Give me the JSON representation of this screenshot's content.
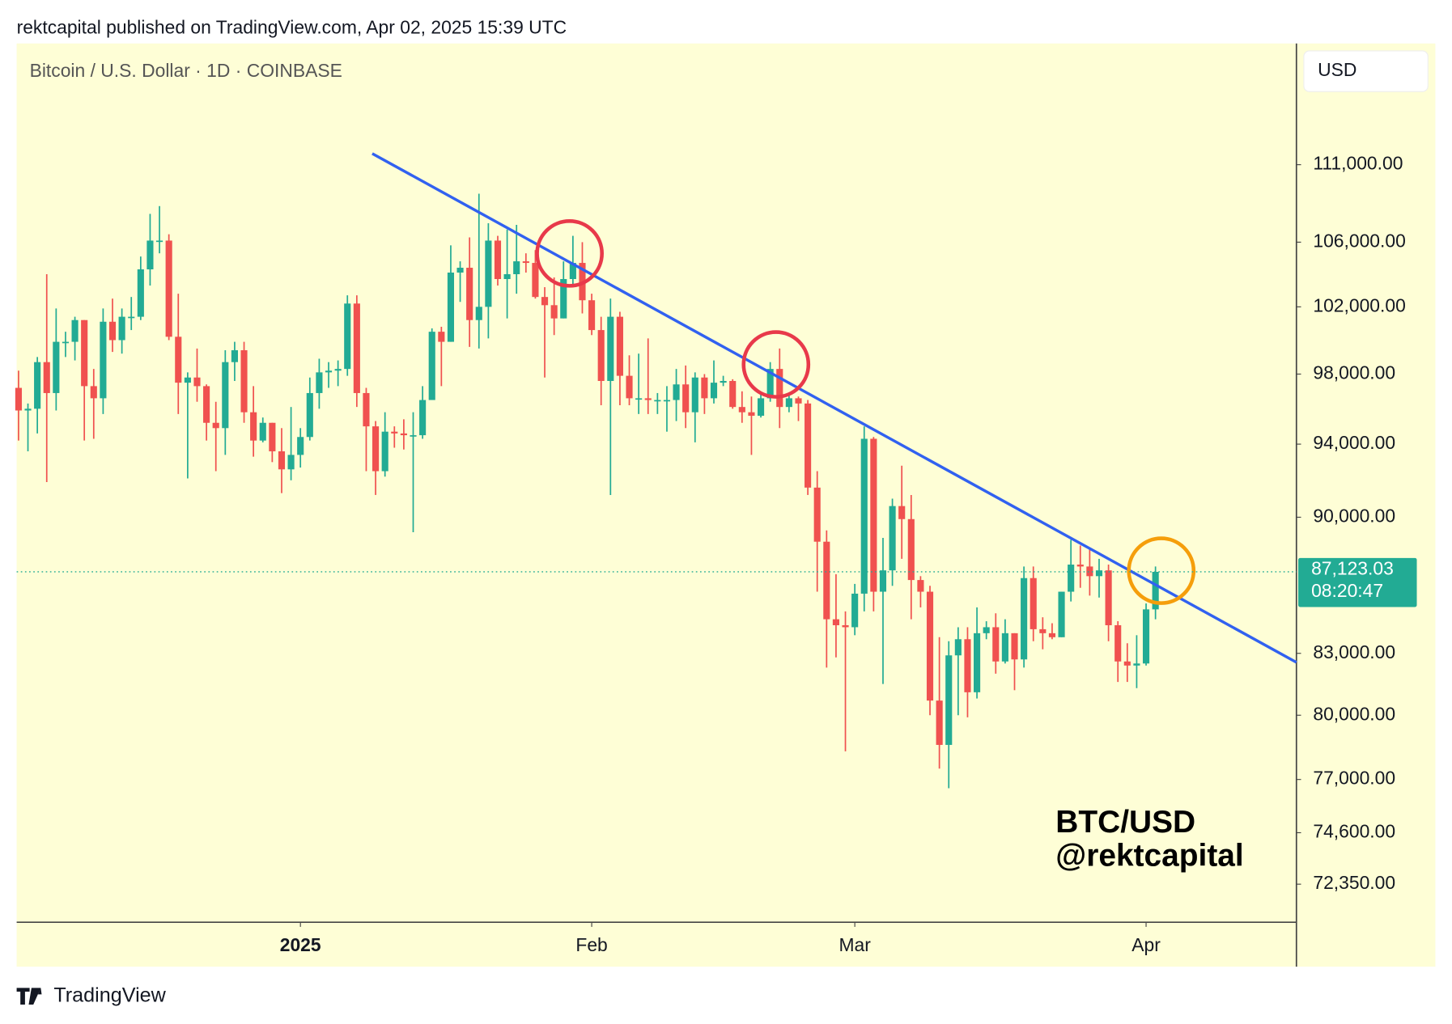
{
  "header": "rektcapital published on TradingView.com, Apr 02, 2025 15:39 UTC",
  "currency": "USD",
  "countdown": "08:20:47",
  "watermark": [
    "BTC/USD",
    "@rektcapital"
  ],
  "footer_brand": "TradingView",
  "chart_data": {
    "type": "candlestick",
    "title": "Bitcoin / U.S. Dollar · 1D · COINBASE",
    "log_scale": true,
    "grid": false,
    "up_color": "#22ab94",
    "down_color": "#f0514f",
    "open": [
      97200,
      95900,
      96000,
      98700,
      96900,
      99900,
      99900,
      101200,
      97300,
      96600,
      101100,
      100000,
      101400,
      101400,
      104300,
      106100,
      106100,
      100200,
      97500,
      97800,
      97300,
      95200,
      94900,
      98700,
      99400,
      95800,
      94200,
      95200,
      93600,
      92600,
      93400,
      94400,
      96900,
      98100,
      98200,
      98300,
      102200,
      96900,
      95000,
      92500,
      94700,
      94600,
      94500,
      94500,
      96500,
      100500,
      99900,
      104100,
      104400,
      101200,
      102000,
      106100,
      103700,
      104000,
      104800,
      104700,
      102600,
      102100,
      101300,
      103700,
      104700,
      102400,
      100600,
      97600,
      101400,
      97900,
      96600,
      96600,
      96500,
      96500,
      96500,
      97400,
      95800,
      97800,
      96600,
      97500,
      97600,
      96100,
      95800,
      95600,
      96600,
      98300,
      96100,
      96600,
      96300,
      91600,
      88700,
      84700,
      84400,
      84300,
      86000,
      94300,
      86100,
      87200,
      90600,
      89900,
      86700,
      86100,
      80700,
      78600,
      82900,
      83700,
      81100,
      84000,
      84300,
      82600,
      84000,
      82700,
      86800,
      84200,
      84000,
      83800,
      86100,
      87500,
      87400,
      86900,
      87200,
      84400,
      82600,
      82400,
      82500,
      85200
    ],
    "high": [
      98200,
      96300,
      99000,
      104000,
      101900,
      100500,
      101400,
      101200,
      98300,
      101900,
      102500,
      101900,
      102600,
      105100,
      107800,
      108300,
      106500,
      102800,
      98100,
      99500,
      97400,
      96400,
      99400,
      99900,
      99900,
      97300,
      95500,
      95200,
      94900,
      96100,
      94900,
      97800,
      98900,
      98700,
      98800,
      102700,
      102700,
      97200,
      95300,
      95800,
      95000,
      95400,
      95800,
      97300,
      100700,
      100800,
      105800,
      104800,
      106300,
      109100,
      107200,
      106400,
      106800,
      107100,
      105300,
      105500,
      103200,
      103800,
      104800,
      106400,
      106000,
      102800,
      101400,
      102500,
      101700,
      99100,
      99200,
      100100,
      96900,
      97300,
      98300,
      98500,
      98100,
      98000,
      98800,
      97900,
      97700,
      97000,
      96700,
      96900,
      98700,
      99500,
      96900,
      96700,
      96500,
      92500,
      89300,
      87000,
      85100,
      86500,
      95000,
      94400,
      88900,
      91000,
      92800,
      91200,
      86900,
      86400,
      83800,
      83600,
      84300,
      84300,
      85300,
      84600,
      85000,
      84700,
      84000,
      87400,
      87400,
      84800,
      84500,
      86100,
      88800,
      88500,
      88300,
      87800,
      87500,
      84600,
      83500,
      83900,
      85500,
      87400
    ],
    "low": [
      94200,
      93600,
      94600,
      91900,
      95900,
      99000,
      98800,
      94200,
      94300,
      95700,
      99300,
      99200,
      100600,
      101200,
      103300,
      105300,
      100000,
      95700,
      92100,
      96400,
      94200,
      92500,
      93400,
      97600,
      95200,
      93300,
      94100,
      93000,
      91300,
      92000,
      92700,
      94200,
      96000,
      97200,
      97300,
      97900,
      96100,
      92500,
      91200,
      92200,
      93800,
      93700,
      89200,
      94300,
      96500,
      97300,
      99900,
      102300,
      99600,
      99500,
      100100,
      103300,
      101300,
      102800,
      104100,
      102500,
      97800,
      100300,
      101300,
      103300,
      101600,
      100300,
      96200,
      91200,
      96200,
      96200,
      95700,
      95700,
      95700,
      94700,
      95300,
      94900,
      94100,
      95700,
      96300,
      97300,
      96000,
      95200,
      93400,
      95500,
      96400,
      94900,
      95800,
      95300,
      91200,
      86100,
      82300,
      82800,
      78300,
      83900,
      85100,
      85100,
      81500,
      86400,
      87800,
      84700,
      85300,
      80000,
      77500,
      76600,
      80000,
      79900,
      80800,
      83700,
      82000,
      82500,
      81200,
      82300,
      83600,
      83200,
      83700,
      83800,
      85600,
      86300,
      85900,
      85800,
      83600,
      81600,
      81600,
      81300,
      82400,
      84700
    ],
    "close": [
      95900,
      96000,
      98700,
      96900,
      99900,
      99900,
      101200,
      97300,
      96600,
      101100,
      100000,
      101400,
      101400,
      104300,
      106100,
      106100,
      100200,
      97500,
      97800,
      97300,
      95200,
      94900,
      98700,
      99400,
      95800,
      94200,
      95200,
      93600,
      92600,
      93400,
      94400,
      96900,
      98100,
      98200,
      98300,
      102200,
      96900,
      95000,
      92500,
      94700,
      94600,
      94500,
      94500,
      96500,
      100500,
      99900,
      104100,
      104400,
      101200,
      102000,
      106100,
      103700,
      104000,
      104800,
      104700,
      102600,
      102100,
      101300,
      103700,
      104700,
      102400,
      100600,
      97600,
      101400,
      97900,
      96600,
      96600,
      96500,
      96500,
      96500,
      97400,
      95800,
      97800,
      96600,
      97500,
      97600,
      96100,
      95800,
      95600,
      96600,
      98300,
      96100,
      96600,
      96300,
      91600,
      88700,
      84700,
      84400,
      84300,
      86000,
      94300,
      86100,
      87200,
      90600,
      89900,
      86700,
      86100,
      80700,
      78600,
      82900,
      83700,
      81100,
      84000,
      84300,
      82600,
      84000,
      82700,
      86800,
      84200,
      84000,
      83800,
      86100,
      87500,
      87400,
      86900,
      87200,
      84400,
      82600,
      82400,
      82500,
      85200,
      87123.03
    ],
    "last_value_label": "87,123.03",
    "xlim": [
      -0.2,
      136
    ],
    "xticks": [
      {
        "value": 30,
        "label": "2025"
      },
      {
        "value": 61,
        "label": "Feb"
      },
      {
        "value": 89,
        "label": "Mar"
      },
      {
        "value": 120,
        "label": "Apr"
      }
    ],
    "ylim": [
      70730,
      119300
    ],
    "yticks": [
      {
        "value": 111000,
        "label": "111,000.00"
      },
      {
        "value": 106000,
        "label": "106,000.00"
      },
      {
        "value": 102000,
        "label": "102,000.00"
      },
      {
        "value": 98000,
        "label": "98,000.00"
      },
      {
        "value": 94000,
        "label": "94,000.00"
      },
      {
        "value": 90000,
        "label": "90,000.00"
      },
      {
        "value": 83000,
        "label": "83,000.00"
      },
      {
        "value": 80000,
        "label": "80,000.00"
      },
      {
        "value": 77000,
        "label": "77,000.00"
      },
      {
        "value": 74600,
        "label": "74,600.00"
      },
      {
        "value": 72350,
        "label": "72,350.00"
      }
    ]
  }
}
